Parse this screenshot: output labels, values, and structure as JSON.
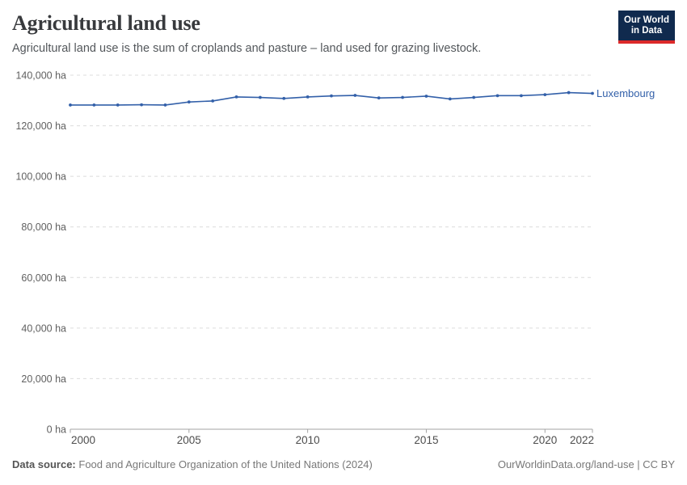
{
  "header": {
    "title": "Agricultural land use",
    "subtitle": "Agricultural land use is the sum of croplands and pasture – land used for grazing livestock.",
    "logo": {
      "line1": "Our World",
      "line2": "in Data",
      "bg_color": "#102a4e",
      "accent_color": "#dc2a2a"
    }
  },
  "chart_data": {
    "type": "line",
    "title": "Agricultural land use",
    "xlabel": "",
    "ylabel": "",
    "y_unit": "ha",
    "x_range": [
      2000,
      2022
    ],
    "y_range": [
      0,
      140000
    ],
    "grid": "horizontal-dashed",
    "legend_position": "line-end-label",
    "x_ticks": [
      {
        "value": 2000,
        "label": "2000"
      },
      {
        "value": 2005,
        "label": "2005"
      },
      {
        "value": 2010,
        "label": "2010"
      },
      {
        "value": 2015,
        "label": "2015"
      },
      {
        "value": 2020,
        "label": "2020"
      },
      {
        "value": 2022,
        "label": "2022"
      }
    ],
    "y_ticks": [
      {
        "value": 0,
        "label": "0 ha"
      },
      {
        "value": 20000,
        "label": "20,000 ha"
      },
      {
        "value": 40000,
        "label": "40,000 ha"
      },
      {
        "value": 60000,
        "label": "60,000 ha"
      },
      {
        "value": 80000,
        "label": "80,000 ha"
      },
      {
        "value": 100000,
        "label": "100,000 ha"
      },
      {
        "value": 120000,
        "label": "120,000 ha"
      },
      {
        "value": 140000,
        "label": "140,000 ha"
      }
    ],
    "series": [
      {
        "name": "Luxembourg",
        "color": "#3360a9",
        "x": [
          2000,
          2001,
          2002,
          2003,
          2004,
          2005,
          2006,
          2007,
          2008,
          2009,
          2010,
          2011,
          2012,
          2013,
          2014,
          2015,
          2016,
          2017,
          2018,
          2019,
          2020,
          2021,
          2022
        ],
        "values": [
          128200,
          128200,
          128200,
          128300,
          128200,
          129400,
          129800,
          131400,
          131200,
          130800,
          131400,
          131800,
          132000,
          131000,
          131200,
          131700,
          130600,
          131200,
          131900,
          131900,
          132300,
          133100,
          132800
        ]
      }
    ]
  },
  "footer": {
    "source_label": "Data source:",
    "source_text": "Food and Agriculture Organization of the United Nations (2024)",
    "credit": "OurWorldinData.org/land-use | CC BY"
  },
  "style_colors": {
    "gridline": "#dcdcdc",
    "axis": "#a3a3a3",
    "y_tick_label": "#606060",
    "x_tick_label": "#4d4d4d"
  }
}
